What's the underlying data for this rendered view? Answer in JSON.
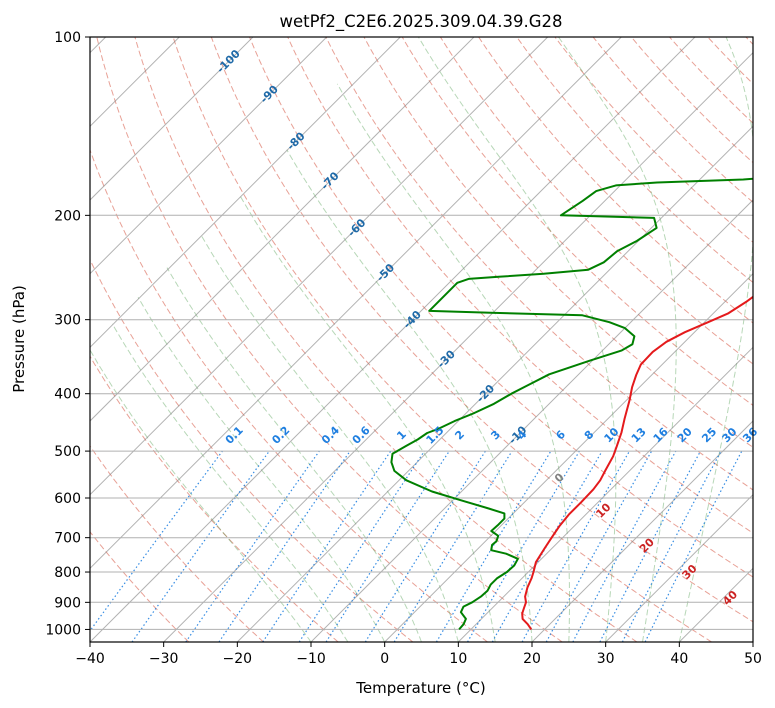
{
  "chart_data": {
    "type": "line",
    "title": "wetPf2_C2E6.2025.309.04.39.G28",
    "xlabel": "Temperature (°C)",
    "ylabel": "Pressure (hPa)",
    "xlim": [
      -40,
      50
    ],
    "ylim": [
      1050,
      100
    ],
    "y_scale": "log",
    "grid": true,
    "x_ticks": [
      -40,
      -30,
      -20,
      -10,
      0,
      10,
      20,
      30,
      40,
      50
    ],
    "y_ticks": [
      100,
      200,
      300,
      400,
      500,
      600,
      700,
      800,
      900,
      1000
    ],
    "series": [
      {
        "color": "#e41a1c",
        "points": [
          [
            18.2,
            1000
          ],
          [
            17,
            980
          ],
          [
            15.6,
            960
          ],
          [
            14.8,
            940
          ],
          [
            14.3,
            920
          ],
          [
            13.8,
            900
          ],
          [
            12.9,
            880
          ],
          [
            12,
            850
          ],
          [
            11.3,
            820
          ],
          [
            10.7,
            800
          ],
          [
            9.7,
            770
          ],
          [
            9,
            730
          ],
          [
            8.5,
            700
          ],
          [
            8,
            670
          ],
          [
            7.7,
            640
          ],
          [
            7.7,
            610
          ],
          [
            7.6,
            580
          ],
          [
            7.3,
            560
          ],
          [
            6.7,
            540
          ],
          [
            5.8,
            510
          ],
          [
            4.9,
            490
          ],
          [
            3.7,
            465
          ],
          [
            2.2,
            440
          ],
          [
            0.4,
            410
          ],
          [
            -1,
            390
          ],
          [
            -2.1,
            372
          ],
          [
            -2.9,
            357
          ],
          [
            -3,
            340
          ],
          [
            -2.5,
            327
          ],
          [
            -1.3,
            315
          ],
          [
            0.5,
            303
          ],
          [
            2,
            293
          ],
          [
            2.9,
            280
          ],
          [
            3.6,
            265
          ],
          [
            4.7,
            250
          ],
          [
            5.9,
            235
          ],
          [
            6.8,
            222
          ],
          [
            7.6,
            209
          ],
          [
            8.9,
            197
          ],
          [
            10.6,
            185
          ],
          [
            12.1,
            174
          ],
          [
            13.1,
            166
          ],
          [
            13.6,
            160
          ],
          [
            14.1,
            151
          ],
          [
            14.7,
            144
          ],
          [
            15.7,
            137
          ],
          [
            16.6,
            130
          ],
          [
            17.4,
            124
          ],
          [
            18.4,
            118
          ],
          [
            19.4,
            114
          ],
          [
            20.4,
            111
          ],
          [
            21.1,
            108
          ],
          [
            21.8,
            105
          ],
          [
            22.6,
            102
          ],
          [
            23.1,
            100
          ]
        ]
      },
      {
        "color": "#008000",
        "points": [
          [
            8.4,
            1000
          ],
          [
            8.3,
            980
          ],
          [
            7.9,
            960
          ],
          [
            6.3,
            935
          ],
          [
            5.9,
            915
          ],
          [
            6.5,
            900
          ],
          [
            6.9,
            880
          ],
          [
            7,
            860
          ],
          [
            6.6,
            840
          ],
          [
            6.6,
            820
          ],
          [
            7.1,
            800
          ],
          [
            7.2,
            780
          ],
          [
            6.8,
            760
          ],
          [
            4.5,
            745
          ],
          [
            2,
            735
          ],
          [
            1.4,
            720
          ],
          [
            1.5,
            710
          ],
          [
            1,
            695
          ],
          [
            -0.6,
            682
          ],
          [
            -0.5,
            667
          ],
          [
            -0.5,
            650
          ],
          [
            -1.2,
            637
          ],
          [
            -4,
            625
          ],
          [
            -9,
            605
          ],
          [
            -14,
            585
          ],
          [
            -19,
            560
          ],
          [
            -21.9,
            540
          ],
          [
            -23.5,
            522
          ],
          [
            -24.5,
            505
          ],
          [
            -23.7,
            490
          ],
          [
            -23,
            478
          ],
          [
            -22.6,
            466
          ],
          [
            -21.7,
            459
          ],
          [
            -20.5,
            445
          ],
          [
            -19,
            432
          ],
          [
            -17.5,
            416
          ],
          [
            -16.5,
            400
          ],
          [
            -15.5,
            388
          ],
          [
            -14,
            371
          ],
          [
            -10.4,
            352
          ],
          [
            -7.4,
            338
          ],
          [
            -6.8,
            330
          ],
          [
            -7.6,
            320
          ],
          [
            -10,
            310
          ],
          [
            -12.9,
            303
          ],
          [
            -17.5,
            295
          ],
          [
            -30.3,
            292
          ],
          [
            -38.9,
            290
          ],
          [
            -38.9,
            260
          ],
          [
            -37.9,
            256
          ],
          [
            -34.1,
            254
          ],
          [
            -28.4,
            251
          ],
          [
            -22.9,
            247
          ],
          [
            -21.8,
            240
          ],
          [
            -21.5,
            230
          ],
          [
            -20.2,
            221
          ],
          [
            -19.3,
            210
          ],
          [
            -21,
            202
          ],
          [
            -34,
            200
          ],
          [
            -33,
            189
          ],
          [
            -32.5,
            182
          ],
          [
            -30.6,
            178
          ],
          [
            -25.4,
            176
          ],
          [
            -14.1,
            174
          ],
          [
            -9.2,
            172
          ],
          [
            -8.8,
            165
          ],
          [
            -9,
            160
          ],
          [
            -10.1,
            154
          ],
          [
            -11.6,
            150
          ],
          [
            -12.3,
            144
          ],
          [
            -11.2,
            138
          ],
          [
            -9.6,
            134
          ],
          [
            -9.3,
            128
          ],
          [
            -8.6,
            122
          ],
          [
            -7.3,
            116
          ],
          [
            -5.5,
            110
          ],
          [
            -3.1,
            104
          ],
          [
            -0.3,
            100
          ]
        ]
      }
    ],
    "isotherm_labels": [
      "-100",
      "-90",
      "-80",
      "-70",
      "-60",
      "-50",
      "-40",
      "-30",
      "-20",
      "-10"
    ],
    "mixing_ratio_labels": [
      "0.1",
      "0.2",
      "0.4",
      "0.6",
      "1",
      "1.5",
      "2",
      "3",
      "4",
      "6",
      "8",
      "10",
      "13",
      "16",
      "20",
      "25",
      "30",
      "36"
    ],
    "moist_adiabat_labels": [
      "0",
      "10",
      "20",
      "30",
      "40"
    ],
    "colors": {
      "temperature": "#e41a1c",
      "dewpoint": "#008000",
      "dry_adiabat": "#d1442d",
      "moist_adiabat": "#4c9a4c",
      "mixing_ratio": "#1f7fe0",
      "isotherm": "#808080",
      "isotherm_label": "#1f6aa8",
      "moist_label": "#cc2222"
    }
  }
}
